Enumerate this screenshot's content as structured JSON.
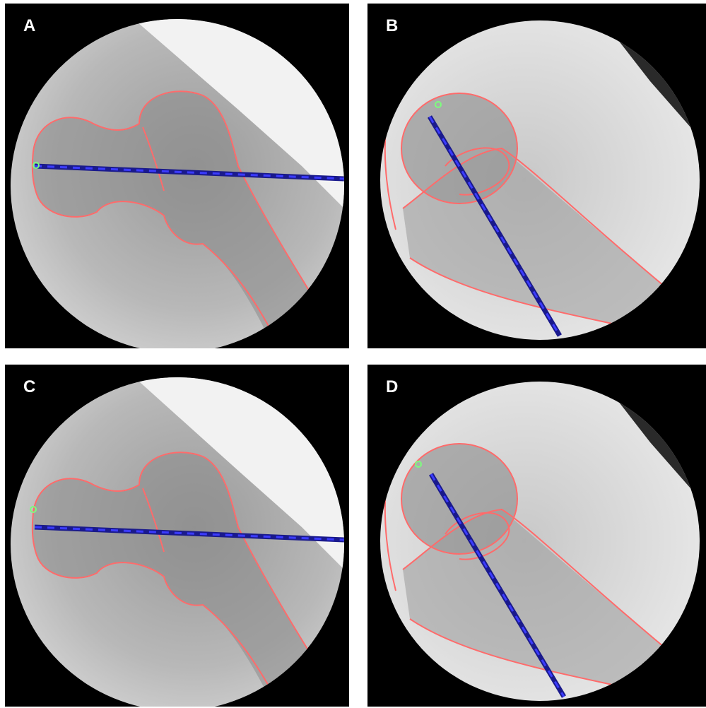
{
  "panels": [
    {
      "label": "A"
    },
    {
      "label": "B"
    },
    {
      "label": "C"
    },
    {
      "label": "D"
    }
  ],
  "colors": {
    "background": "#000000",
    "outline": "#ff6b6b",
    "guide_line": "#1a1a8c",
    "guide_dash": "#3b3bff",
    "marker": "#7cff7c"
  }
}
